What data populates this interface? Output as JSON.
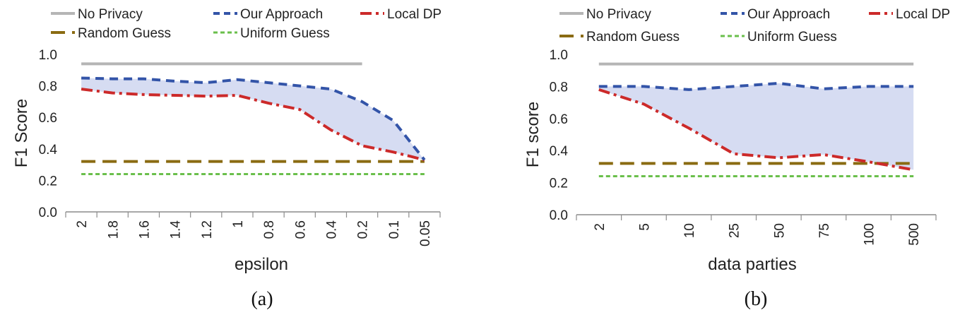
{
  "chart_data": [
    {
      "type": "line",
      "panel": "(a)",
      "xlabel": "epsilon",
      "ylabel": "F1 Score",
      "categories": [
        "2",
        "1.8",
        "1.6",
        "1.4",
        "1.2",
        "1",
        "0.8",
        "0.6",
        "0.4",
        "0.2",
        "0.1",
        "0.05"
      ],
      "ylim": [
        0.0,
        1.0
      ],
      "yticks": [
        "0.0",
        "0.2",
        "0.4",
        "0.6",
        "0.8",
        "1.0"
      ],
      "series": [
        {
          "name": "No Privacy",
          "color": "#b5b5b5",
          "style": "solid",
          "values": [
            0.94,
            0.94,
            0.94,
            0.94,
            0.94,
            0.94,
            0.94,
            0.94,
            0.94,
            0.94,
            null,
            null
          ]
        },
        {
          "name": "Our Approach",
          "color": "#3354a8",
          "style": "dashed",
          "values": [
            0.85,
            0.845,
            0.845,
            0.83,
            0.82,
            0.84,
            0.82,
            0.8,
            0.78,
            0.7,
            0.58,
            0.33
          ]
        },
        {
          "name": "Local DP",
          "color": "#cc2a2a",
          "style": "dashdot",
          "values": [
            0.78,
            0.755,
            0.745,
            0.74,
            0.735,
            0.74,
            0.69,
            0.65,
            0.52,
            0.42,
            0.38,
            0.33
          ]
        },
        {
          "name": "Random Guess",
          "color": "#8a6b12",
          "style": "longdash",
          "values": [
            0.32,
            0.32,
            0.32,
            0.32,
            0.32,
            0.32,
            0.32,
            0.32,
            0.32,
            0.32,
            0.32,
            0.32
          ]
        },
        {
          "name": "Uniform Guess",
          "color": "#6abf4b",
          "style": "shortdash",
          "values": [
            0.24,
            0.24,
            0.24,
            0.24,
            0.24,
            0.24,
            0.24,
            0.24,
            0.24,
            0.24,
            0.24,
            0.24
          ]
        }
      ],
      "fill_between": [
        "Our Approach",
        "Local DP"
      ],
      "fill_color": "#d6dcf2",
      "legend": "top"
    },
    {
      "type": "line",
      "panel": "(b)",
      "xlabel": "data parties",
      "ylabel": "F1 score",
      "categories": [
        "2",
        "5",
        "10",
        "25",
        "50",
        "75",
        "100",
        "500"
      ],
      "ylim": [
        0.0,
        1.0
      ],
      "yticks": [
        "0.0",
        "0.2",
        "0.4",
        "0.6",
        "0.8",
        "1.0"
      ],
      "series": [
        {
          "name": "No Privacy",
          "color": "#b5b5b5",
          "style": "solid",
          "values": [
            0.94,
            0.94,
            0.94,
            0.94,
            0.94,
            0.94,
            0.94,
            0.94
          ]
        },
        {
          "name": "Our Approach",
          "color": "#3354a8",
          "style": "dashed",
          "values": [
            0.8,
            0.8,
            0.78,
            0.8,
            0.82,
            0.785,
            0.8,
            0.8
          ]
        },
        {
          "name": "Local DP",
          "color": "#cc2a2a",
          "style": "dashdot",
          "values": [
            0.78,
            0.69,
            0.54,
            0.38,
            0.355,
            0.375,
            0.33,
            0.28
          ]
        },
        {
          "name": "Random Guess",
          "color": "#8a6b12",
          "style": "longdash",
          "values": [
            0.32,
            0.32,
            0.32,
            0.32,
            0.32,
            0.32,
            0.32,
            0.32
          ]
        },
        {
          "name": "Uniform Guess",
          "color": "#6abf4b",
          "style": "shortdash",
          "values": [
            0.24,
            0.24,
            0.24,
            0.24,
            0.24,
            0.24,
            0.24,
            0.24
          ]
        }
      ],
      "fill_between": [
        "Our Approach",
        "Local DP"
      ],
      "fill_color": "#d6dcf2",
      "legend": "top"
    }
  ]
}
